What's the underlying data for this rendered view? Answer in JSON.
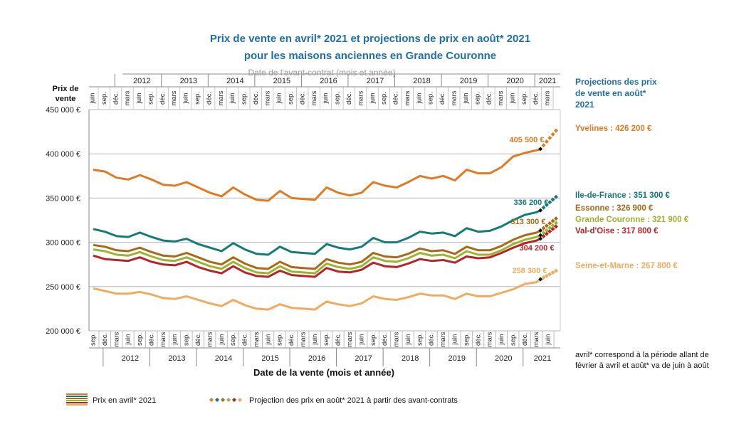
{
  "title_line1": "Prix de vente en avril* 2021 et projections de prix en août* 2021",
  "title_line2": "pour les maisons anciennes en Grande Couronne",
  "colors": {
    "Yvelines": "#e07b24",
    "Ile-de-France": "#147a7a",
    "Essonne": "#a86a18",
    "Grande Couronne": "#9bb32d",
    "Val-d'Oise": "#b5242a",
    "Seine-et-Marne": "#f0ab5e",
    "title": "#1f6fa8"
  },
  "projection_heading": "Projections des prix de vente en août* 2021",
  "footnote": "avril* correspond à la période allant de février à avril et août* va de juin à août",
  "legend": {
    "actual": "Prix en avril* 2021",
    "projection": "Projection des prix en août* 2021 à partir des avant-contrats"
  },
  "chart_data": {
    "type": "line",
    "ylabel": "Prix de vente",
    "xlabel": "Date de la vente (mois et année)",
    "top_axis_label": "Date de l'avant-contrat (mois et année)",
    "ylim": [
      200000,
      450000
    ],
    "yticks": [
      "200 000 €",
      "250 000 €",
      "300 000 €",
      "350 000 €",
      "400 000 €",
      "450 000 €"
    ],
    "grid": true,
    "x_start": "2011-09",
    "x_end_actual": "2021-04",
    "x_end_projection": "2021-08",
    "bottom_years": [
      "2012",
      "2013",
      "2014",
      "2015",
      "2016",
      "2017",
      "2018",
      "2019",
      "2020",
      "2021"
    ],
    "top_years": [
      "2012",
      "2013",
      "2014",
      "2015",
      "2016",
      "2017",
      "2018",
      "2019",
      "2020",
      "2021"
    ],
    "month_ticks": [
      "mars",
      "juin",
      "sep.",
      "déc."
    ],
    "series": [
      {
        "name": "Yvelines",
        "points": [
          [
            "2011-09",
            382000
          ],
          [
            "2011-12",
            380000
          ],
          [
            "2012-03",
            373000
          ],
          [
            "2012-06",
            371000
          ],
          [
            "2012-09",
            376000
          ],
          [
            "2012-12",
            371000
          ],
          [
            "2013-03",
            365000
          ],
          [
            "2013-06",
            364000
          ],
          [
            "2013-09",
            368000
          ],
          [
            "2013-12",
            362000
          ],
          [
            "2014-03",
            356000
          ],
          [
            "2014-06",
            352000
          ],
          [
            "2014-09",
            362000
          ],
          [
            "2014-12",
            354000
          ],
          [
            "2015-03",
            348000
          ],
          [
            "2015-06",
            347000
          ],
          [
            "2015-09",
            358000
          ],
          [
            "2015-12",
            350000
          ],
          [
            "2016-03",
            349000
          ],
          [
            "2016-06",
            348000
          ],
          [
            "2016-09",
            362000
          ],
          [
            "2016-12",
            356000
          ],
          [
            "2017-03",
            353000
          ],
          [
            "2017-06",
            356000
          ],
          [
            "2017-09",
            368000
          ],
          [
            "2017-12",
            364000
          ],
          [
            "2018-03",
            362000
          ],
          [
            "2018-06",
            368000
          ],
          [
            "2018-09",
            375000
          ],
          [
            "2018-12",
            372000
          ],
          [
            "2019-03",
            375000
          ],
          [
            "2019-06",
            370000
          ],
          [
            "2019-09",
            382000
          ],
          [
            "2019-12",
            378000
          ],
          [
            "2020-03",
            378000
          ],
          [
            "2020-06",
            385000
          ],
          [
            "2020-09",
            397000
          ],
          [
            "2020-12",
            401000
          ],
          [
            "2021-03",
            404000
          ],
          [
            "2021-04",
            405500
          ]
        ],
        "last_label": "405 500 €",
        "projection": 426200,
        "projection_label": "Yvelines : 426 200 €"
      },
      {
        "name": "Ile-de-France",
        "points": [
          [
            "2011-09",
            315000
          ],
          [
            "2011-12",
            312000
          ],
          [
            "2012-03",
            307000
          ],
          [
            "2012-06",
            306000
          ],
          [
            "2012-09",
            311000
          ],
          [
            "2012-12",
            306000
          ],
          [
            "2013-03",
            302000
          ],
          [
            "2013-06",
            301000
          ],
          [
            "2013-09",
            304000
          ],
          [
            "2013-12",
            298000
          ],
          [
            "2014-03",
            294000
          ],
          [
            "2014-06",
            290000
          ],
          [
            "2014-09",
            299000
          ],
          [
            "2014-12",
            292000
          ],
          [
            "2015-03",
            287000
          ],
          [
            "2015-06",
            286000
          ],
          [
            "2015-09",
            295000
          ],
          [
            "2015-12",
            289000
          ],
          [
            "2016-03",
            288000
          ],
          [
            "2016-06",
            287000
          ],
          [
            "2016-09",
            298000
          ],
          [
            "2016-12",
            294000
          ],
          [
            "2017-03",
            292000
          ],
          [
            "2017-06",
            295000
          ],
          [
            "2017-09",
            305000
          ],
          [
            "2017-12",
            300000
          ],
          [
            "2018-03",
            300000
          ],
          [
            "2018-06",
            305000
          ],
          [
            "2018-09",
            312000
          ],
          [
            "2018-12",
            310000
          ],
          [
            "2019-03",
            311000
          ],
          [
            "2019-06",
            307000
          ],
          [
            "2019-09",
            316000
          ],
          [
            "2019-12",
            312000
          ],
          [
            "2020-03",
            313000
          ],
          [
            "2020-06",
            318000
          ],
          [
            "2020-09",
            325000
          ],
          [
            "2020-12",
            331000
          ],
          [
            "2021-03",
            334000
          ],
          [
            "2021-04",
            336200
          ]
        ],
        "last_label": "336 200 €",
        "projection": 351300,
        "projection_label": "Ile-de-France : 351 300 €"
      },
      {
        "name": "Essonne",
        "points": [
          [
            "2011-09",
            297000
          ],
          [
            "2011-12",
            295000
          ],
          [
            "2012-03",
            291000
          ],
          [
            "2012-06",
            290000
          ],
          [
            "2012-09",
            294000
          ],
          [
            "2012-12",
            289000
          ],
          [
            "2013-03",
            285000
          ],
          [
            "2013-06",
            284000
          ],
          [
            "2013-09",
            288000
          ],
          [
            "2013-12",
            283000
          ],
          [
            "2014-03",
            278000
          ],
          [
            "2014-06",
            275000
          ],
          [
            "2014-09",
            283000
          ],
          [
            "2014-12",
            276000
          ],
          [
            "2015-03",
            271000
          ],
          [
            "2015-06",
            270000
          ],
          [
            "2015-09",
            278000
          ],
          [
            "2015-12",
            272000
          ],
          [
            "2016-03",
            271000
          ],
          [
            "2016-06",
            270000
          ],
          [
            "2016-09",
            281000
          ],
          [
            "2016-12",
            277000
          ],
          [
            "2017-03",
            275000
          ],
          [
            "2017-06",
            278000
          ],
          [
            "2017-09",
            288000
          ],
          [
            "2017-12",
            284000
          ],
          [
            "2018-03",
            283000
          ],
          [
            "2018-06",
            287000
          ],
          [
            "2018-09",
            293000
          ],
          [
            "2018-12",
            290000
          ],
          [
            "2019-03",
            291000
          ],
          [
            "2019-06",
            287000
          ],
          [
            "2019-09",
            295000
          ],
          [
            "2019-12",
            291000
          ],
          [
            "2020-03",
            291000
          ],
          [
            "2020-06",
            296000
          ],
          [
            "2020-09",
            303000
          ],
          [
            "2020-12",
            308000
          ],
          [
            "2021-03",
            311000
          ],
          [
            "2021-04",
            313300
          ]
        ],
        "last_label": "313 300 €",
        "projection": 326900,
        "projection_label": "Essonne : 326 900 €"
      },
      {
        "name": "Grande Couronne",
        "points": [
          [
            "2011-09",
            292000
          ],
          [
            "2011-12",
            290000
          ],
          [
            "2012-03",
            286000
          ],
          [
            "2012-06",
            285000
          ],
          [
            "2012-09",
            289000
          ],
          [
            "2012-12",
            284000
          ],
          [
            "2013-03",
            280000
          ],
          [
            "2013-06",
            279000
          ],
          [
            "2013-09",
            283000
          ],
          [
            "2013-12",
            278000
          ],
          [
            "2014-03",
            273000
          ],
          [
            "2014-06",
            270000
          ],
          [
            "2014-09",
            278000
          ],
          [
            "2014-12",
            271000
          ],
          [
            "2015-03",
            266000
          ],
          [
            "2015-06",
            265000
          ],
          [
            "2015-09",
            273000
          ],
          [
            "2015-12",
            267000
          ],
          [
            "2016-03",
            266000
          ],
          [
            "2016-06",
            265000
          ],
          [
            "2016-09",
            276000
          ],
          [
            "2016-12",
            272000
          ],
          [
            "2017-03",
            270000
          ],
          [
            "2017-06",
            273000
          ],
          [
            "2017-09",
            283000
          ],
          [
            "2017-12",
            279000
          ],
          [
            "2018-03",
            278000
          ],
          [
            "2018-06",
            282000
          ],
          [
            "2018-09",
            288000
          ],
          [
            "2018-12",
            285000
          ],
          [
            "2019-03",
            286000
          ],
          [
            "2019-06",
            282000
          ],
          [
            "2019-09",
            290000
          ],
          [
            "2019-12",
            286000
          ],
          [
            "2020-03",
            286000
          ],
          [
            "2020-06",
            291000
          ],
          [
            "2020-09",
            298000
          ],
          [
            "2020-12",
            303000
          ],
          [
            "2021-03",
            306000
          ],
          [
            "2021-04",
            308000
          ]
        ],
        "projection": 321900,
        "projection_label": "Grande Couronne : 321 900 €"
      },
      {
        "name": "Val-d'Oise",
        "points": [
          [
            "2011-09",
            285000
          ],
          [
            "2011-12",
            281000
          ],
          [
            "2012-03",
            280000
          ],
          [
            "2012-06",
            279000
          ],
          [
            "2012-09",
            283000
          ],
          [
            "2012-12",
            278000
          ],
          [
            "2013-03",
            275000
          ],
          [
            "2013-06",
            274000
          ],
          [
            "2013-09",
            278000
          ],
          [
            "2013-12",
            272000
          ],
          [
            "2014-03",
            268000
          ],
          [
            "2014-06",
            265000
          ],
          [
            "2014-09",
            273000
          ],
          [
            "2014-12",
            266000
          ],
          [
            "2015-03",
            262000
          ],
          [
            "2015-06",
            261000
          ],
          [
            "2015-09",
            268000
          ],
          [
            "2015-12",
            263000
          ],
          [
            "2016-03",
            262000
          ],
          [
            "2016-06",
            261000
          ],
          [
            "2016-09",
            271000
          ],
          [
            "2016-12",
            267000
          ],
          [
            "2017-03",
            266000
          ],
          [
            "2017-06",
            269000
          ],
          [
            "2017-09",
            277000
          ],
          [
            "2017-12",
            273000
          ],
          [
            "2018-03",
            272000
          ],
          [
            "2018-06",
            276000
          ],
          [
            "2018-09",
            281000
          ],
          [
            "2018-12",
            279000
          ],
          [
            "2019-03",
            280000
          ],
          [
            "2019-06",
            277000
          ],
          [
            "2019-09",
            284000
          ],
          [
            "2019-12",
            282000
          ],
          [
            "2020-03",
            283000
          ],
          [
            "2020-06",
            288000
          ],
          [
            "2020-09",
            294000
          ],
          [
            "2020-12",
            299000
          ],
          [
            "2021-03",
            302000
          ],
          [
            "2021-04",
            304200
          ]
        ],
        "last_label": "304 200 €",
        "projection": 317800,
        "projection_label": "Val-d'Oise : 317 800 €"
      },
      {
        "name": "Seine-et-Marne",
        "points": [
          [
            "2011-09",
            248000
          ],
          [
            "2011-12",
            245000
          ],
          [
            "2012-03",
            242000
          ],
          [
            "2012-06",
            242000
          ],
          [
            "2012-09",
            244000
          ],
          [
            "2012-12",
            241000
          ],
          [
            "2013-03",
            237000
          ],
          [
            "2013-06",
            236000
          ],
          [
            "2013-09",
            239000
          ],
          [
            "2013-12",
            235000
          ],
          [
            "2014-03",
            231000
          ],
          [
            "2014-06",
            228000
          ],
          [
            "2014-09",
            235000
          ],
          [
            "2014-12",
            229000
          ],
          [
            "2015-03",
            225000
          ],
          [
            "2015-06",
            224000
          ],
          [
            "2015-09",
            230000
          ],
          [
            "2015-12",
            226000
          ],
          [
            "2016-03",
            225000
          ],
          [
            "2016-06",
            224000
          ],
          [
            "2016-09",
            233000
          ],
          [
            "2016-12",
            230000
          ],
          [
            "2017-03",
            228000
          ],
          [
            "2017-06",
            231000
          ],
          [
            "2017-09",
            239000
          ],
          [
            "2017-12",
            236000
          ],
          [
            "2018-03",
            235000
          ],
          [
            "2018-06",
            238000
          ],
          [
            "2018-09",
            242000
          ],
          [
            "2018-12",
            240000
          ],
          [
            "2019-03",
            240000
          ],
          [
            "2019-06",
            236000
          ],
          [
            "2019-09",
            242000
          ],
          [
            "2019-12",
            239000
          ],
          [
            "2020-03",
            239000
          ],
          [
            "2020-06",
            243000
          ],
          [
            "2020-09",
            247000
          ],
          [
            "2020-12",
            253000
          ],
          [
            "2021-03",
            255000
          ],
          [
            "2021-04",
            258300
          ]
        ],
        "last_label": "258 300 €",
        "projection": 267800,
        "projection_label": "Seine-et-Marne : 267 800 €"
      }
    ]
  }
}
